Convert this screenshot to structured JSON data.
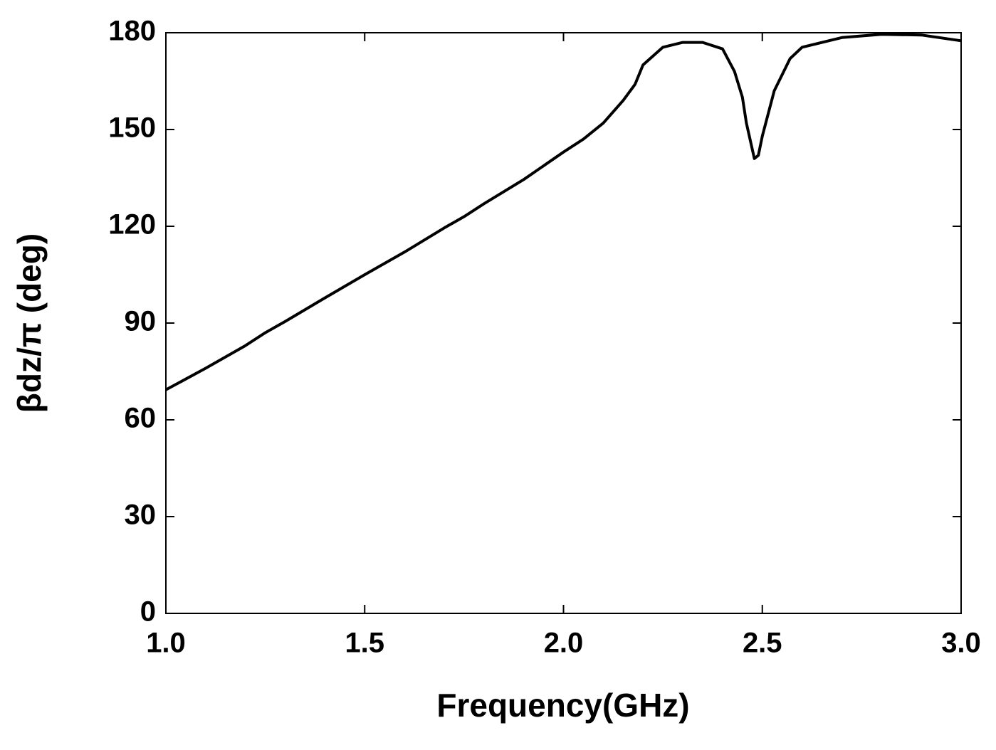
{
  "chart_data": {
    "type": "line",
    "xlabel": "Frequency(GHz)",
    "ylabel": "βdz/π (deg)",
    "x": [
      1.0,
      1.1,
      1.2,
      1.25,
      1.3,
      1.4,
      1.5,
      1.6,
      1.7,
      1.75,
      1.8,
      1.9,
      2.0,
      2.05,
      2.1,
      2.15,
      2.18,
      2.2,
      2.25,
      2.3,
      2.35,
      2.4,
      2.43,
      2.45,
      2.46,
      2.48,
      2.49,
      2.5,
      2.53,
      2.57,
      2.6,
      2.7,
      2.8,
      2.9,
      3.0
    ],
    "series": [
      {
        "color": "#000000",
        "values": [
          69.3,
          76,
          83,
          87,
          90.5,
          97.8,
          105,
          112,
          119.5,
          123,
          127,
          134.5,
          143,
          147,
          152,
          159,
          164,
          170,
          175.5,
          177,
          177,
          175,
          168,
          160,
          152,
          141,
          142,
          148,
          162,
          172,
          175.5,
          178.5,
          179.5,
          179.3,
          177.5
        ]
      }
    ],
    "xlim": [
      1.0,
      3.0
    ],
    "xticks": [
      {
        "value": 1,
        "label": "1.0"
      },
      1.5,
      {
        "value": 2,
        "label": "2.0"
      },
      2.5,
      {
        "value": 3,
        "label": "3.0"
      }
    ],
    "ylim": [
      0,
      180
    ],
    "yticks": [
      0,
      30,
      60,
      90,
      120,
      150,
      180
    ],
    "grid": false
  }
}
